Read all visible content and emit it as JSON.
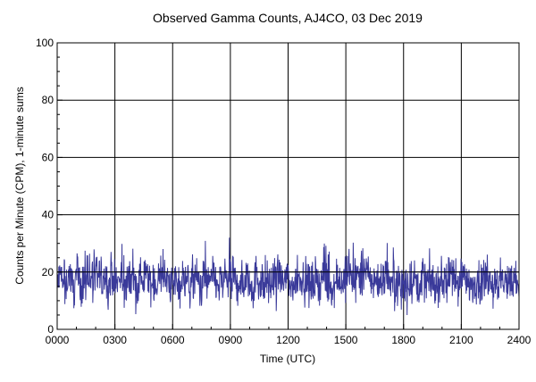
{
  "chart_data": {
    "type": "line",
    "title": "Observed Gamma Counts, AJ4CO, 03 Dec 2019",
    "xlabel": "Time (UTC)",
    "ylabel": "Counts per Minute (CPM), 1-minute sums",
    "xlim": [
      0,
      1440
    ],
    "ylim": [
      0,
      100
    ],
    "x_ticks": [
      "0000",
      "0300",
      "0600",
      "0900",
      "1200",
      "1500",
      "1800",
      "2100",
      "2400"
    ],
    "y_ticks": [
      "0",
      "20",
      "40",
      "60",
      "80",
      "100"
    ],
    "grid": true,
    "colors": {
      "series": "#3a3a9a",
      "grid": "#000000",
      "reference_line": "#000000"
    },
    "reference_line_y": 20,
    "series": [
      {
        "values_every_10_min": [
          16,
          18,
          15,
          17,
          20,
          14,
          19,
          17,
          16,
          18,
          22,
          15,
          17,
          19,
          16,
          18,
          15,
          20,
          17,
          16,
          18,
          14,
          17,
          19,
          16,
          15,
          18,
          17,
          20,
          16,
          17,
          15,
          18,
          19,
          16,
          17,
          15,
          18,
          16,
          17,
          19,
          15,
          16,
          18,
          17,
          15,
          19,
          16,
          17,
          18,
          15,
          16,
          17,
          19,
          16,
          18,
          15,
          17,
          16,
          18,
          17,
          15,
          19,
          16,
          17,
          18,
          16,
          15,
          17,
          19,
          16,
          18,
          17,
          15,
          16,
          18,
          19,
          17,
          16,
          15,
          17,
          18,
          16,
          19,
          17,
          15,
          16,
          18,
          17,
          16,
          19,
          20,
          18,
          17,
          19,
          18,
          20,
          19,
          17,
          18,
          16,
          17,
          18,
          19,
          17,
          16,
          18,
          17,
          16,
          15,
          17,
          18,
          16,
          17,
          19,
          16,
          18,
          17,
          15,
          16,
          17,
          18,
          16,
          19,
          17,
          16,
          18,
          17,
          15,
          16,
          17,
          18,
          16,
          17,
          19,
          18,
          16,
          17,
          15,
          18,
          16,
          17,
          17,
          18,
          16
        ]
      }
    ]
  }
}
